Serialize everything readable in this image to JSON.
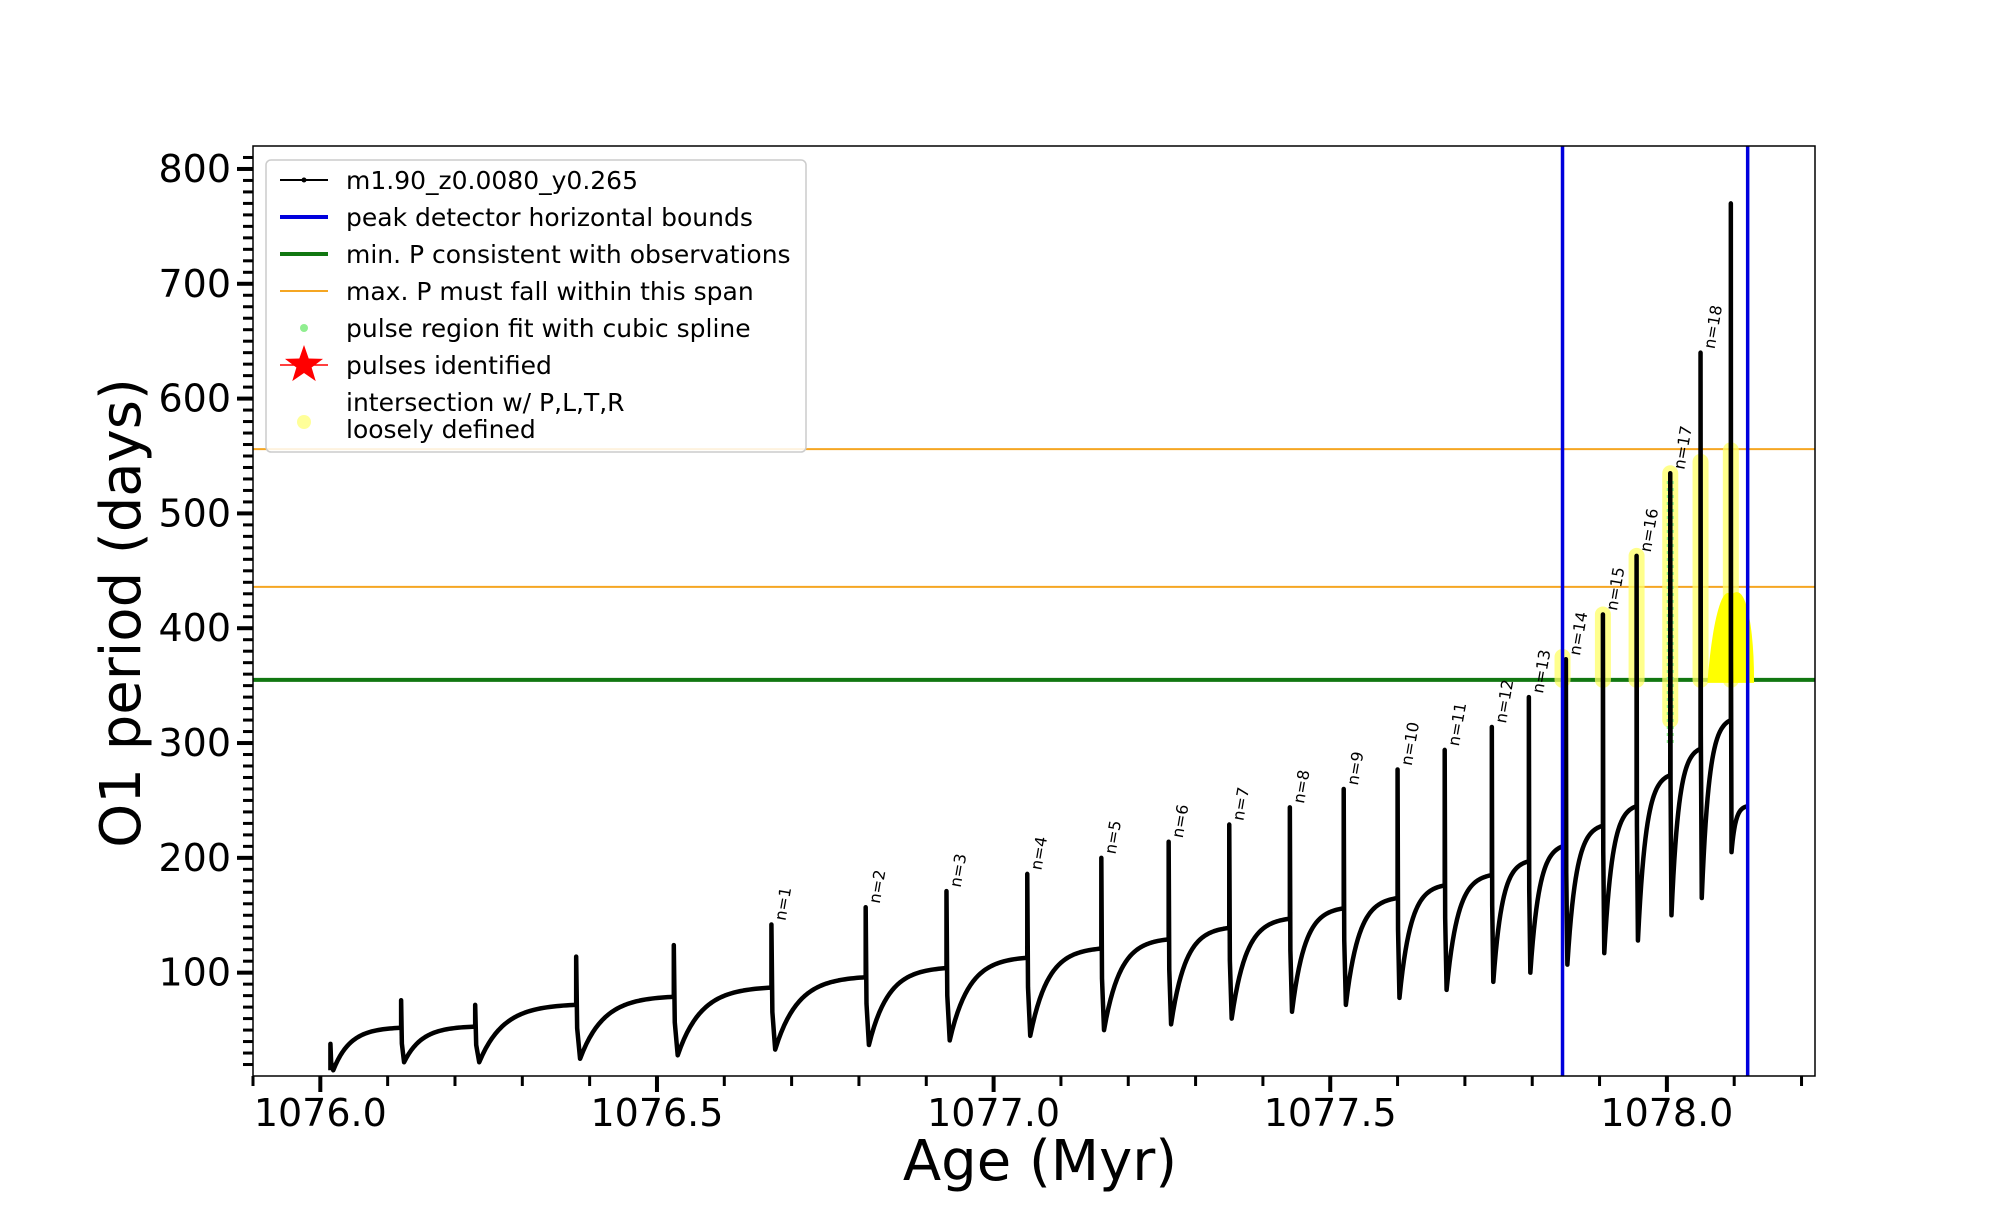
{
  "chart_data": {
    "type": "line",
    "title": "",
    "xlabel": "Age (Myr)",
    "ylabel": "O1 period (days)",
    "xlim": [
      1075.9,
      1078.22
    ],
    "ylim": [
      10,
      820
    ],
    "xticks": [
      1076.0,
      1076.5,
      1077.0,
      1077.5,
      1078.0
    ],
    "xtick_labels": [
      "1076.0",
      "1076.5",
      "1077.0",
      "1077.5",
      "1078.0"
    ],
    "yticks": [
      100,
      200,
      300,
      400,
      500,
      600,
      700,
      800
    ],
    "ytick_labels": [
      "100",
      "200",
      "300",
      "400",
      "500",
      "600",
      "700",
      "800"
    ],
    "grid": false,
    "legend_position": "top-left",
    "legend": [
      {
        "label": "m1.90_z0.0080_y0.265",
        "style": "line-dots",
        "color": "#000000"
      },
      {
        "label": "peak detector horizontal bounds",
        "style": "line",
        "color": "#0000dd"
      },
      {
        "label": "min. P consistent with observations",
        "style": "line",
        "color": "#117711"
      },
      {
        "label": "max. P must fall within this span",
        "style": "line",
        "color": "#f5a623"
      },
      {
        "label": "pulse region fit with cubic spline",
        "style": "dot",
        "color": "#90ee90"
      },
      {
        "label": "pulses identified",
        "style": "star",
        "color": "#ff0000"
      },
      {
        "label": "intersection w/ P,L,T,R\nloosely defined",
        "style": "dot",
        "color": "#ffff99"
      }
    ],
    "vlines": [
      {
        "x": 1077.845,
        "color": "#0000dd"
      },
      {
        "x": 1078.12,
        "color": "#0000dd"
      }
    ],
    "hlines": [
      {
        "y": 355,
        "color": "#117711",
        "name": "min P"
      },
      {
        "y": 436,
        "color": "#f5a623",
        "name": "max P lower"
      },
      {
        "y": 556,
        "color": "#f5a623",
        "name": "max P upper"
      }
    ],
    "pulses": [
      {
        "x": 1076.015,
        "base": 15,
        "peak": 38,
        "pre": 15
      },
      {
        "x": 1076.12,
        "base": 22,
        "peak": 76,
        "pre": 52
      },
      {
        "x": 1076.23,
        "base": 22,
        "peak": 72,
        "pre": 53
      },
      {
        "x": 1076.38,
        "base": 25,
        "peak": 114,
        "pre": 72
      },
      {
        "x": 1076.525,
        "base": 28,
        "peak": 124,
        "pre": 79
      },
      {
        "x": 1076.67,
        "base": 33,
        "peak": 142,
        "pre": 87
      },
      {
        "x": 1076.81,
        "base": 37,
        "peak": 157,
        "pre": 96
      },
      {
        "x": 1076.93,
        "base": 41,
        "peak": 171,
        "pre": 104
      },
      {
        "x": 1077.05,
        "base": 45,
        "peak": 186,
        "pre": 113
      },
      {
        "x": 1077.16,
        "base": 50,
        "peak": 200,
        "pre": 121
      },
      {
        "x": 1077.26,
        "base": 55,
        "peak": 214,
        "pre": 129
      },
      {
        "x": 1077.35,
        "base": 60,
        "peak": 229,
        "pre": 139
      },
      {
        "x": 1077.44,
        "base": 66,
        "peak": 244,
        "pre": 147
      },
      {
        "x": 1077.52,
        "base": 72,
        "peak": 260,
        "pre": 156
      },
      {
        "x": 1077.6,
        "base": 78,
        "peak": 277,
        "pre": 165
      },
      {
        "x": 1077.67,
        "base": 85,
        "peak": 294,
        "pre": 176
      },
      {
        "x": 1077.74,
        "base": 92,
        "peak": 314,
        "pre": 185
      },
      {
        "x": 1077.795,
        "base": 100,
        "peak": 340,
        "pre": 197
      },
      {
        "x": 1077.85,
        "base": 107,
        "peak": 373,
        "pre": 211
      },
      {
        "x": 1077.905,
        "base": 117,
        "peak": 412,
        "pre": 228
      },
      {
        "x": 1077.955,
        "base": 128,
        "peak": 463,
        "pre": 245
      },
      {
        "x": 1078.005,
        "base": 150,
        "peak": 535,
        "pre": 272
      },
      {
        "x": 1078.05,
        "base": 165,
        "peak": 640,
        "pre": 295
      },
      {
        "x": 1078.095,
        "base": 205,
        "peak": 770,
        "pre": 320
      }
    ],
    "pulse_labels": [
      {
        "text": "n=1",
        "x": 1076.67,
        "y": 143
      },
      {
        "text": "n=2",
        "x": 1076.81,
        "y": 158
      },
      {
        "text": "n=3",
        "x": 1076.93,
        "y": 172
      },
      {
        "text": "n=4",
        "x": 1077.05,
        "y": 187
      },
      {
        "text": "n=5",
        "x": 1077.16,
        "y": 201
      },
      {
        "text": "n=6",
        "x": 1077.26,
        "y": 215
      },
      {
        "text": "n=7",
        "x": 1077.35,
        "y": 230
      },
      {
        "text": "n=8",
        "x": 1077.44,
        "y": 245
      },
      {
        "text": "n=9",
        "x": 1077.52,
        "y": 261
      },
      {
        "text": "n=10",
        "x": 1077.6,
        "y": 278
      },
      {
        "text": "n=11",
        "x": 1077.67,
        "y": 295
      },
      {
        "text": "n=12",
        "x": 1077.74,
        "y": 315
      },
      {
        "text": "n=13",
        "x": 1077.795,
        "y": 341
      },
      {
        "text": "n=14",
        "x": 1077.85,
        "y": 374
      },
      {
        "text": "n=15",
        "x": 1077.905,
        "y": 413
      },
      {
        "text": "n=16",
        "x": 1077.955,
        "y": 464
      },
      {
        "text": "n=17",
        "x": 1078.005,
        "y": 536
      },
      {
        "text": "n=18",
        "x": 1078.05,
        "y": 641
      }
    ],
    "spline_regions": [
      {
        "x": 1078.005,
        "y0": 300,
        "y1": 530
      }
    ],
    "yellow_regions": [
      {
        "x": 1077.845,
        "y0": 355,
        "y1": 375
      },
      {
        "x": 1077.905,
        "y0": 355,
        "y1": 412
      },
      {
        "x": 1077.955,
        "y0": 355,
        "y1": 463
      },
      {
        "x": 1078.005,
        "y0": 320,
        "y1": 535
      },
      {
        "x": 1078.05,
        "y0": 355,
        "y1": 545
      },
      {
        "x": 1078.095,
        "y0": 355,
        "y1": 555
      }
    ],
    "yellow_blob": {
      "x0": 1078.065,
      "x1": 1078.125,
      "y0": 355,
      "y1": 435
    }
  }
}
